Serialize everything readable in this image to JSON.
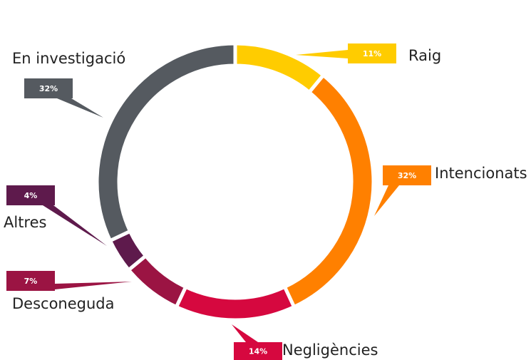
{
  "chart_data": {
    "type": "pie",
    "categories": [
      "Raig",
      "Intencionats",
      "Negligències",
      "Desconeguda",
      "Altres",
      "En investigació"
    ],
    "values": [
      11,
      32,
      14,
      7,
      4,
      32
    ],
    "value_labels": [
      "11%",
      "32%",
      "14%",
      "7%",
      "4%",
      "32%"
    ],
    "colors": [
      "#ffcc00",
      "#ff8000",
      "#d6083f",
      "#9b1443",
      "#5e1a4c",
      "#555a60"
    ]
  }
}
